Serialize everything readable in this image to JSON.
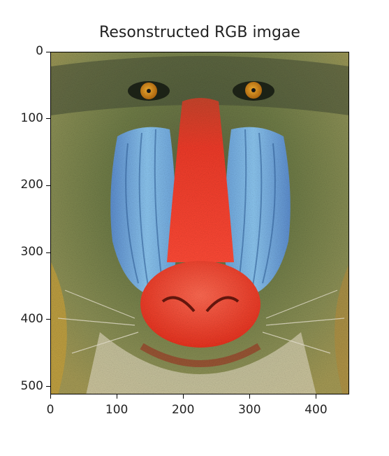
{
  "title": "Resonstructed RGB imgae",
  "image": {
    "subject": "mandrill-face",
    "colors": {
      "fur_dark": "#3f4a32",
      "fur_olive": "#7a8a4a",
      "fur_light": "#c9c38a",
      "fur_golden": "#c59b3a",
      "cheek_blue": "#79b6e8",
      "cheek_blue_dark": "#4f86c3",
      "nose_red": "#ef3b2a",
      "nose_tip": "#ff5542",
      "eye_orange": "#e39a1f",
      "whisker": "#e8e2cf"
    }
  },
  "axes": {
    "xlim": [
      0,
      450
    ],
    "ylim": [
      512,
      0
    ],
    "xticks": [
      "0",
      "100",
      "200",
      "300",
      "400"
    ],
    "yticks": [
      "0",
      "100",
      "200",
      "300",
      "400",
      "500"
    ],
    "xtick_values": [
      0,
      100,
      200,
      300,
      400
    ],
    "ytick_values": [
      0,
      100,
      200,
      300,
      400,
      500
    ]
  }
}
